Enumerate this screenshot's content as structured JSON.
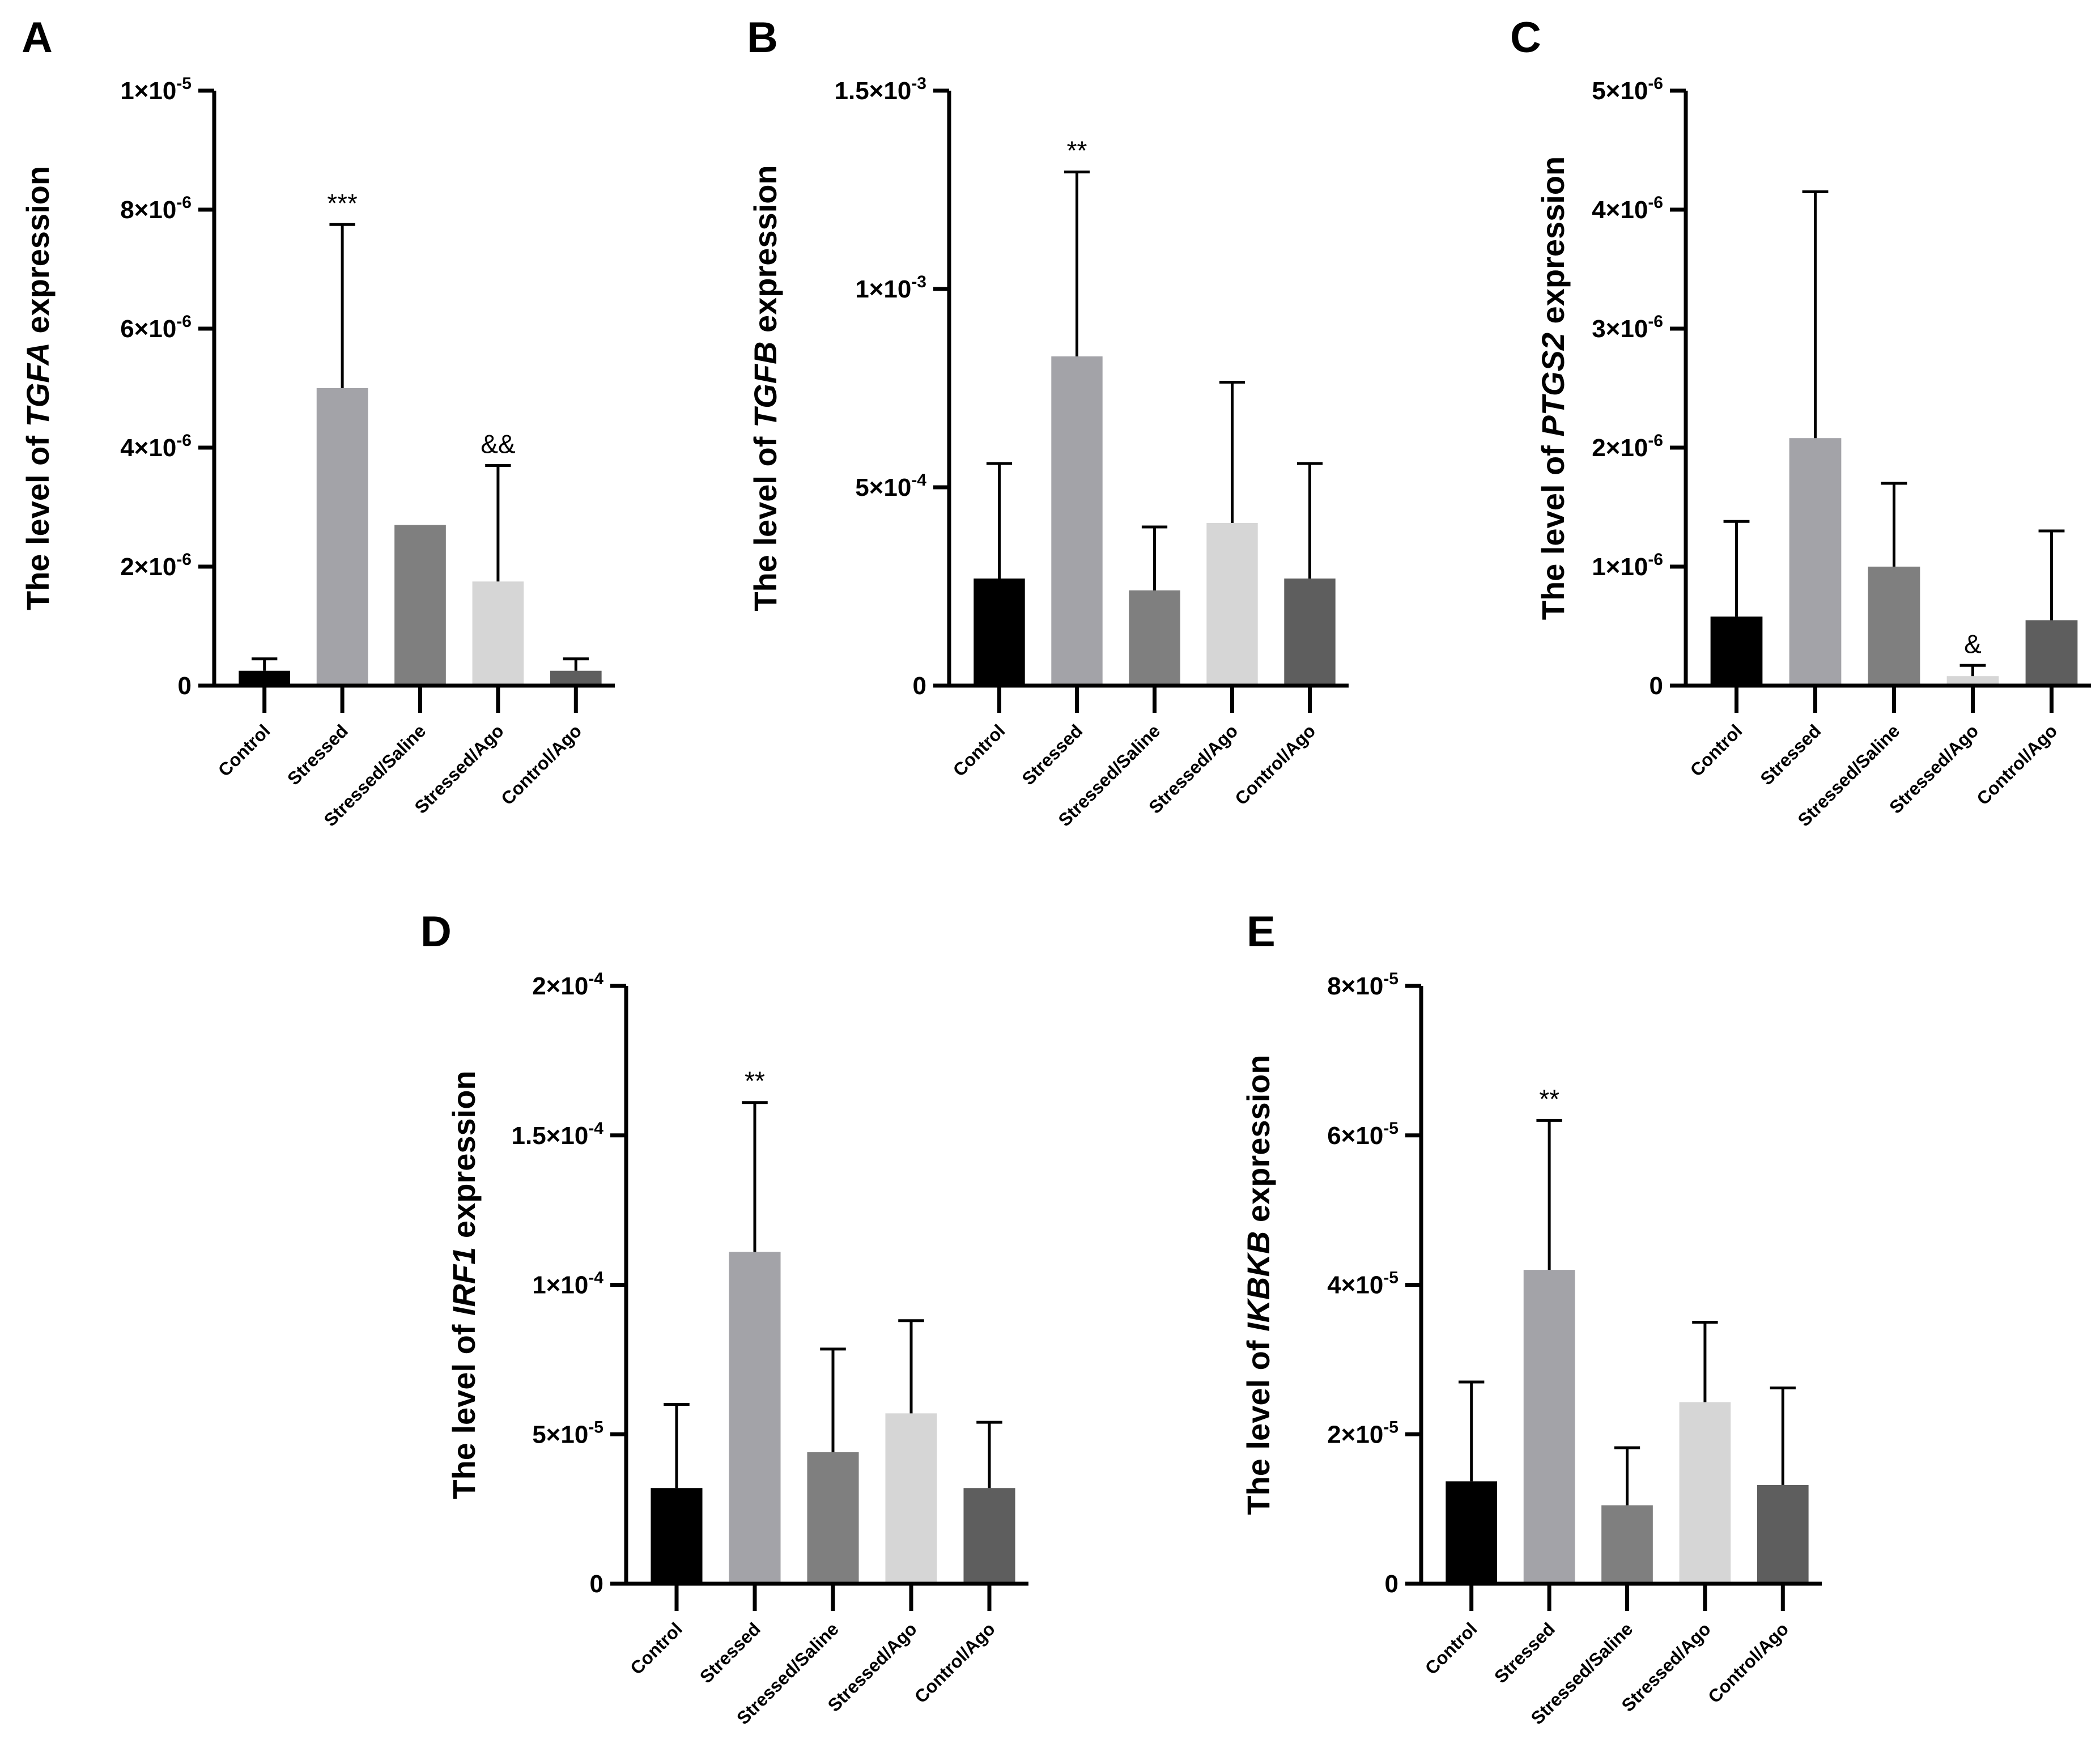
{
  "chart_data": [
    {
      "type": "bar",
      "panel": "A",
      "gene": "TGFA",
      "ylabel_prefix": "The level of ",
      "ylabel_suffix": " expression",
      "categories": [
        "Control",
        "Stressed",
        "Stressed/Saline",
        "Stressed/Ago",
        "Control/Ago"
      ],
      "values": [
        2.5e-07,
        5e-06,
        2.7e-06,
        1.75e-06,
        2.5e-07
      ],
      "errors": [
        2e-07,
        2.75e-06,
        0,
        1.95e-06,
        2e-07
      ],
      "annotations": [
        "",
        "***",
        "",
        "&&",
        ""
      ],
      "ylim": [
        0,
        1e-05
      ],
      "ticks": [
        {
          "value": 0,
          "mant": "0",
          "exp": ""
        },
        {
          "value": 2e-06,
          "mant": "2×10",
          "exp": "-6"
        },
        {
          "value": 4e-06,
          "mant": "4×10",
          "exp": "-6"
        },
        {
          "value": 6e-06,
          "mant": "6×10",
          "exp": "-6"
        },
        {
          "value": 8e-06,
          "mant": "8×10",
          "exp": "-6"
        },
        {
          "value": 1e-05,
          "mant": "1×10",
          "exp": "-5"
        }
      ]
    },
    {
      "type": "bar",
      "panel": "B",
      "gene": "TGFB",
      "ylabel_prefix": "The level of ",
      "ylabel_suffix": " expression",
      "categories": [
        "Control",
        "Stressed",
        "Stressed/Saline",
        "Stressed/Ago",
        "Control/Ago"
      ],
      "values": [
        0.00027,
        0.00083,
        0.00024,
        0.00041,
        0.00027
      ],
      "errors": [
        0.00029,
        0.000465,
        0.00016,
        0.000355,
        0.00029
      ],
      "annotations": [
        "",
        "**",
        "",
        "",
        ""
      ],
      "ylim": [
        0,
        0.0015
      ],
      "ticks": [
        {
          "value": 0,
          "mant": "0",
          "exp": ""
        },
        {
          "value": 0.0005,
          "mant": "5×10",
          "exp": "-4"
        },
        {
          "value": 0.001,
          "mant": "1×10",
          "exp": "-3"
        },
        {
          "value": 0.0015,
          "mant": "1.5×10",
          "exp": "-3"
        }
      ]
    },
    {
      "type": "bar",
      "panel": "C",
      "gene": "PTGS2",
      "ylabel_prefix": "The level of ",
      "ylabel_suffix": " expression",
      "categories": [
        "Control",
        "Stressed",
        "Stressed/Saline",
        "Stressed/Ago",
        "Control/Ago"
      ],
      "values": [
        5.8e-07,
        2.08e-06,
        1e-06,
        8e-08,
        5.5e-07
      ],
      "errors": [
        8e-07,
        2.07e-06,
        7e-07,
        9e-08,
        7.5e-07
      ],
      "annotations": [
        "",
        "",
        "",
        "&",
        ""
      ],
      "ylim": [
        0,
        5e-06
      ],
      "ticks": [
        {
          "value": 0,
          "mant": "0",
          "exp": ""
        },
        {
          "value": 1e-06,
          "mant": "1×10",
          "exp": "-6"
        },
        {
          "value": 2e-06,
          "mant": "2×10",
          "exp": "-6"
        },
        {
          "value": 3e-06,
          "mant": "3×10",
          "exp": "-6"
        },
        {
          "value": 4e-06,
          "mant": "4×10",
          "exp": "-6"
        },
        {
          "value": 5e-06,
          "mant": "5×10",
          "exp": "-6"
        }
      ]
    },
    {
      "type": "bar",
      "panel": "D",
      "gene": "IRF1",
      "ylabel_prefix": "The level of ",
      "ylabel_suffix": " expression",
      "categories": [
        "Control",
        "Stressed",
        "Stressed/Saline",
        "Stressed/Ago",
        "Control/Ago"
      ],
      "values": [
        3.2e-05,
        0.000111,
        4.4e-05,
        5.7e-05,
        3.2e-05
      ],
      "errors": [
        2.8e-05,
        5e-05,
        3.45e-05,
        3.1e-05,
        2.2e-05
      ],
      "annotations": [
        "",
        "**",
        "",
        "",
        ""
      ],
      "ylim": [
        0,
        0.0002
      ],
      "ticks": [
        {
          "value": 0,
          "mant": "0",
          "exp": ""
        },
        {
          "value": 5e-05,
          "mant": "5×10",
          "exp": "-5"
        },
        {
          "value": 0.0001,
          "mant": "1×10",
          "exp": "-4"
        },
        {
          "value": 0.00015,
          "mant": "1.5×10",
          "exp": "-4"
        },
        {
          "value": 0.0002,
          "mant": "2×10",
          "exp": "-4"
        }
      ]
    },
    {
      "type": "bar",
      "panel": "E",
      "gene": "IKBKB",
      "ylabel_prefix": "The level of ",
      "ylabel_suffix": " expression",
      "categories": [
        "Control",
        "Stressed",
        "Stressed/Saline",
        "Stressed/Ago",
        "Control/Ago"
      ],
      "values": [
        1.37e-05,
        4.2e-05,
        1.05e-05,
        2.43e-05,
        1.32e-05
      ],
      "errors": [
        1.33e-05,
        2e-05,
        7.7e-06,
        1.07e-05,
        1.3e-05
      ],
      "annotations": [
        "",
        "**",
        "",
        "",
        ""
      ],
      "ylim": [
        0,
        8e-05
      ],
      "ticks": [
        {
          "value": 0,
          "mant": "0",
          "exp": ""
        },
        {
          "value": 2e-05,
          "mant": "2×10",
          "exp": "-5"
        },
        {
          "value": 4e-05,
          "mant": "4×10",
          "exp": "-5"
        },
        {
          "value": 6e-05,
          "mant": "6×10",
          "exp": "-5"
        },
        {
          "value": 8e-05,
          "mant": "8×10",
          "exp": "-5"
        }
      ]
    }
  ],
  "colors": {
    "bars": [
      "#000000",
      "#a3a3a8",
      "#7f7f7f",
      "#d6d6d6",
      "#5e5e5e"
    ]
  }
}
